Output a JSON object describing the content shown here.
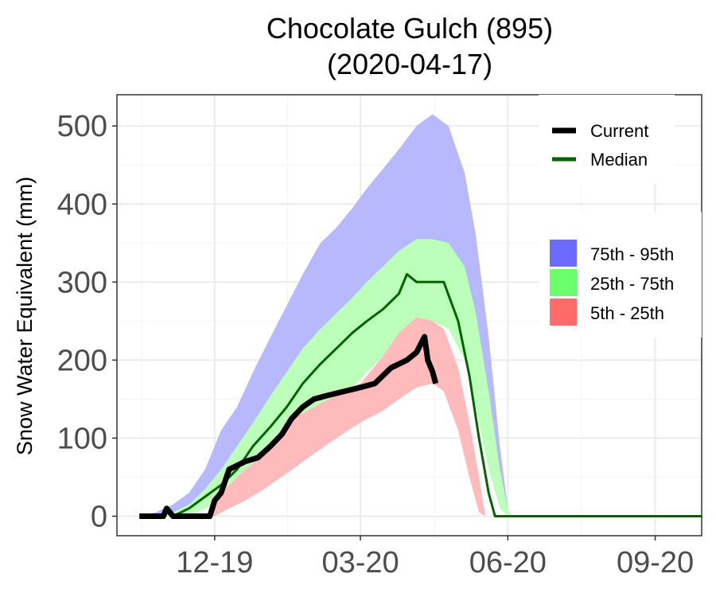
{
  "chart_data": {
    "type": "area",
    "title": [
      "Chocolate Gulch (895)",
      "(2020-04-17)"
    ],
    "ylabel": "Snow Water Equivalent (mm)",
    "xlabel": "",
    "ylim": [
      -25,
      540
    ],
    "xlim": [
      "2019-10-01",
      "2020-09-30"
    ],
    "y_ticks": [
      0,
      100,
      200,
      300,
      400,
      500
    ],
    "x_ticks": [
      {
        "date": "2019-12-01",
        "label": "12-19"
      },
      {
        "date": "2020-03-01",
        "label": "03-20"
      },
      {
        "date": "2020-06-01",
        "label": "06-20"
      },
      {
        "date": "2020-09-01",
        "label": "09-20"
      }
    ],
    "grid": true,
    "legend_lines": [
      {
        "name": "Current",
        "color": "#000000"
      },
      {
        "name": "Median",
        "color": "#006400"
      }
    ],
    "legend_bands": [
      {
        "name": "75th - 95th",
        "color": "#6b6bff"
      },
      {
        "name": "25th - 75th",
        "color": "#6bff6b"
      },
      {
        "name": "5th - 25th",
        "color": "#ff6b6b"
      }
    ],
    "bands": [
      {
        "name": "75th - 95th",
        "color": "#b8b8ff",
        "points": [
          {
            "x": "2019-10-15",
            "low": 0,
            "high": 0
          },
          {
            "x": "2019-10-25",
            "low": 0,
            "high": 5
          },
          {
            "x": "2019-11-05",
            "low": 0,
            "high": 15
          },
          {
            "x": "2019-11-15",
            "low": 8,
            "high": 30
          },
          {
            "x": "2019-11-25",
            "low": 25,
            "high": 60
          },
          {
            "x": "2019-12-05",
            "low": 45,
            "high": 110
          },
          {
            "x": "2019-12-15",
            "low": 65,
            "high": 140
          },
          {
            "x": "2019-12-25",
            "low": 85,
            "high": 185
          },
          {
            "x": "2020-01-05",
            "low": 110,
            "high": 230
          },
          {
            "x": "2020-01-15",
            "low": 145,
            "high": 270
          },
          {
            "x": "2020-01-25",
            "low": 165,
            "high": 310
          },
          {
            "x": "2020-02-05",
            "low": 185,
            "high": 350
          },
          {
            "x": "2020-02-15",
            "low": 205,
            "high": 370
          },
          {
            "x": "2020-02-25",
            "low": 225,
            "high": 395
          },
          {
            "x": "2020-03-05",
            "low": 245,
            "high": 420
          },
          {
            "x": "2020-03-15",
            "low": 265,
            "high": 445
          },
          {
            "x": "2020-03-25",
            "low": 285,
            "high": 470
          },
          {
            "x": "2020-04-05",
            "low": 305,
            "high": 500
          },
          {
            "x": "2020-04-15",
            "low": 310,
            "high": 515
          },
          {
            "x": "2020-04-25",
            "low": 305,
            "high": 500
          },
          {
            "x": "2020-05-05",
            "low": 260,
            "high": 440
          },
          {
            "x": "2020-05-12",
            "low": 200,
            "high": 360
          },
          {
            "x": "2020-05-20",
            "low": 110,
            "high": 230
          },
          {
            "x": "2020-05-27",
            "low": 30,
            "high": 90
          },
          {
            "x": "2020-06-01",
            "low": 0,
            "high": 10
          },
          {
            "x": "2020-06-03",
            "low": 0,
            "high": 0
          }
        ]
      },
      {
        "name": "25th - 75th",
        "color": "#bbffbb",
        "points": [
          {
            "x": "2019-10-20",
            "low": 0,
            "high": 0
          },
          {
            "x": "2019-11-05",
            "low": 0,
            "high": 5
          },
          {
            "x": "2019-11-15",
            "low": 0,
            "high": 15
          },
          {
            "x": "2019-11-25",
            "low": 10,
            "high": 35
          },
          {
            "x": "2019-12-05",
            "low": 20,
            "high": 60
          },
          {
            "x": "2019-12-15",
            "low": 40,
            "high": 90
          },
          {
            "x": "2019-12-25",
            "low": 60,
            "high": 120
          },
          {
            "x": "2020-01-05",
            "low": 80,
            "high": 155
          },
          {
            "x": "2020-01-15",
            "low": 105,
            "high": 185
          },
          {
            "x": "2020-01-25",
            "low": 120,
            "high": 215
          },
          {
            "x": "2020-02-05",
            "low": 135,
            "high": 240
          },
          {
            "x": "2020-02-15",
            "low": 150,
            "high": 260
          },
          {
            "x": "2020-02-25",
            "low": 165,
            "high": 280
          },
          {
            "x": "2020-03-05",
            "low": 185,
            "high": 300
          },
          {
            "x": "2020-03-15",
            "low": 205,
            "high": 320
          },
          {
            "x": "2020-03-25",
            "low": 230,
            "high": 340
          },
          {
            "x": "2020-04-05",
            "low": 245,
            "high": 355
          },
          {
            "x": "2020-04-15",
            "low": 250,
            "high": 355
          },
          {
            "x": "2020-04-25",
            "low": 240,
            "high": 350
          },
          {
            "x": "2020-05-05",
            "low": 200,
            "high": 320
          },
          {
            "x": "2020-05-12",
            "low": 140,
            "high": 260
          },
          {
            "x": "2020-05-20",
            "low": 60,
            "high": 160
          },
          {
            "x": "2020-05-27",
            "low": 10,
            "high": 60
          },
          {
            "x": "2020-06-01",
            "low": 0,
            "high": 10
          },
          {
            "x": "2020-06-03",
            "low": 0,
            "high": 0
          }
        ]
      },
      {
        "name": "5th - 25th",
        "color": "#ffbbbb",
        "points": [
          {
            "x": "2019-11-25",
            "low": 0,
            "high": 0
          },
          {
            "x": "2019-12-01",
            "low": 0,
            "high": 20
          },
          {
            "x": "2019-12-10",
            "low": 10,
            "high": 40
          },
          {
            "x": "2019-12-20",
            "low": 20,
            "high": 60
          },
          {
            "x": "2020-01-01",
            "low": 35,
            "high": 80
          },
          {
            "x": "2020-01-15",
            "low": 55,
            "high": 120
          },
          {
            "x": "2020-02-01",
            "low": 80,
            "high": 140
          },
          {
            "x": "2020-02-15",
            "low": 100,
            "high": 155
          },
          {
            "x": "2020-03-01",
            "low": 120,
            "high": 170
          },
          {
            "x": "2020-03-15",
            "low": 135,
            "high": 205
          },
          {
            "x": "2020-03-25",
            "low": 150,
            "high": 235
          },
          {
            "x": "2020-04-05",
            "low": 165,
            "high": 255
          },
          {
            "x": "2020-04-15",
            "low": 170,
            "high": 250
          },
          {
            "x": "2020-04-22",
            "low": 160,
            "high": 240
          },
          {
            "x": "2020-05-01",
            "low": 110,
            "high": 190
          },
          {
            "x": "2020-05-08",
            "low": 50,
            "high": 120
          },
          {
            "x": "2020-05-14",
            "low": 5,
            "high": 50
          },
          {
            "x": "2020-05-18",
            "low": 0,
            "high": 0
          }
        ]
      }
    ],
    "series": [
      {
        "name": "Median",
        "color": "#006400",
        "points": [
          {
            "x": "2019-11-05",
            "y": 0
          },
          {
            "x": "2019-11-15",
            "y": 10
          },
          {
            "x": "2019-11-25",
            "y": 25
          },
          {
            "x": "2019-12-05",
            "y": 40
          },
          {
            "x": "2019-12-15",
            "y": 60
          },
          {
            "x": "2019-12-25",
            "y": 90
          },
          {
            "x": "2020-01-05",
            "y": 115
          },
          {
            "x": "2020-01-15",
            "y": 140
          },
          {
            "x": "2020-01-25",
            "y": 170
          },
          {
            "x": "2020-02-05",
            "y": 195
          },
          {
            "x": "2020-02-15",
            "y": 215
          },
          {
            "x": "2020-02-25",
            "y": 235
          },
          {
            "x": "2020-03-05",
            "y": 250
          },
          {
            "x": "2020-03-15",
            "y": 265
          },
          {
            "x": "2020-03-25",
            "y": 285
          },
          {
            "x": "2020-03-30",
            "y": 310
          },
          {
            "x": "2020-04-05",
            "y": 300
          },
          {
            "x": "2020-04-15",
            "y": 300
          },
          {
            "x": "2020-04-22",
            "y": 300
          },
          {
            "x": "2020-05-01",
            "y": 250
          },
          {
            "x": "2020-05-08",
            "y": 180
          },
          {
            "x": "2020-05-14",
            "y": 100
          },
          {
            "x": "2020-05-20",
            "y": 30
          },
          {
            "x": "2020-05-24",
            "y": 0
          },
          {
            "x": "2020-09-30",
            "y": 0
          }
        ]
      },
      {
        "name": "Current",
        "color": "#000000",
        "points": [
          {
            "x": "2019-10-15",
            "y": 0
          },
          {
            "x": "2019-10-30",
            "y": 0
          },
          {
            "x": "2019-11-01",
            "y": 10
          },
          {
            "x": "2019-11-03",
            "y": 5
          },
          {
            "x": "2019-11-05",
            "y": 0
          },
          {
            "x": "2019-11-28",
            "y": 0
          },
          {
            "x": "2019-12-01",
            "y": 20
          },
          {
            "x": "2019-12-05",
            "y": 30
          },
          {
            "x": "2019-12-10",
            "y": 60
          },
          {
            "x": "2019-12-15",
            "y": 65
          },
          {
            "x": "2019-12-20",
            "y": 70
          },
          {
            "x": "2019-12-28",
            "y": 75
          },
          {
            "x": "2020-01-05",
            "y": 90
          },
          {
            "x": "2020-01-12",
            "y": 105
          },
          {
            "x": "2020-01-18",
            "y": 125
          },
          {
            "x": "2020-01-25",
            "y": 140
          },
          {
            "x": "2020-02-01",
            "y": 150
          },
          {
            "x": "2020-02-10",
            "y": 155
          },
          {
            "x": "2020-02-20",
            "y": 160
          },
          {
            "x": "2020-03-01",
            "y": 165
          },
          {
            "x": "2020-03-10",
            "y": 170
          },
          {
            "x": "2020-03-20",
            "y": 190
          },
          {
            "x": "2020-03-30",
            "y": 200
          },
          {
            "x": "2020-04-05",
            "y": 210
          },
          {
            "x": "2020-04-10",
            "y": 230
          },
          {
            "x": "2020-04-12",
            "y": 200
          },
          {
            "x": "2020-04-15",
            "y": 185
          },
          {
            "x": "2020-04-17",
            "y": 170
          }
        ]
      }
    ]
  }
}
